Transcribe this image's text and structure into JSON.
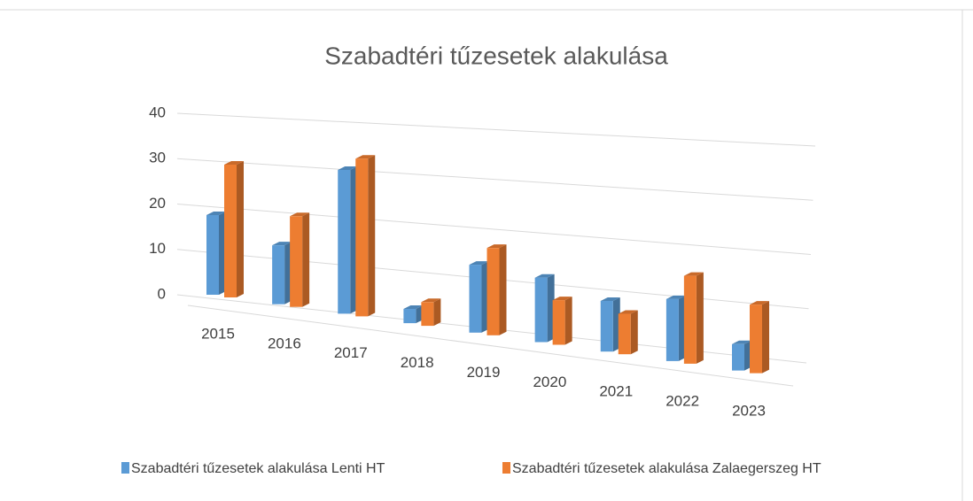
{
  "chart_data": {
    "type": "bar3d",
    "title": "Szabadtéri tűzesetek alakulása",
    "categories": [
      "2015",
      "2016",
      "2017",
      "2018",
      "2019",
      "2020",
      "2021",
      "2022",
      "2023"
    ],
    "series": [
      {
        "name": "Szabadtéri tűzesetek alakulása Lenti HT",
        "color": "#5b9bd5",
        "values": [
          18,
          13,
          31,
          3,
          14,
          13,
          10,
          12,
          5
        ]
      },
      {
        "name": "Szabadtéri tűzesetek alakulása Zalaegerszeg HT",
        "color": "#ed7d31",
        "values": [
          30,
          20,
          34,
          5,
          18,
          9,
          8,
          17,
          13
        ]
      }
    ],
    "ylim": [
      0,
      40
    ],
    "yticks": [
      0,
      10,
      20,
      30,
      40
    ],
    "grid": true,
    "legend": "bottom"
  }
}
